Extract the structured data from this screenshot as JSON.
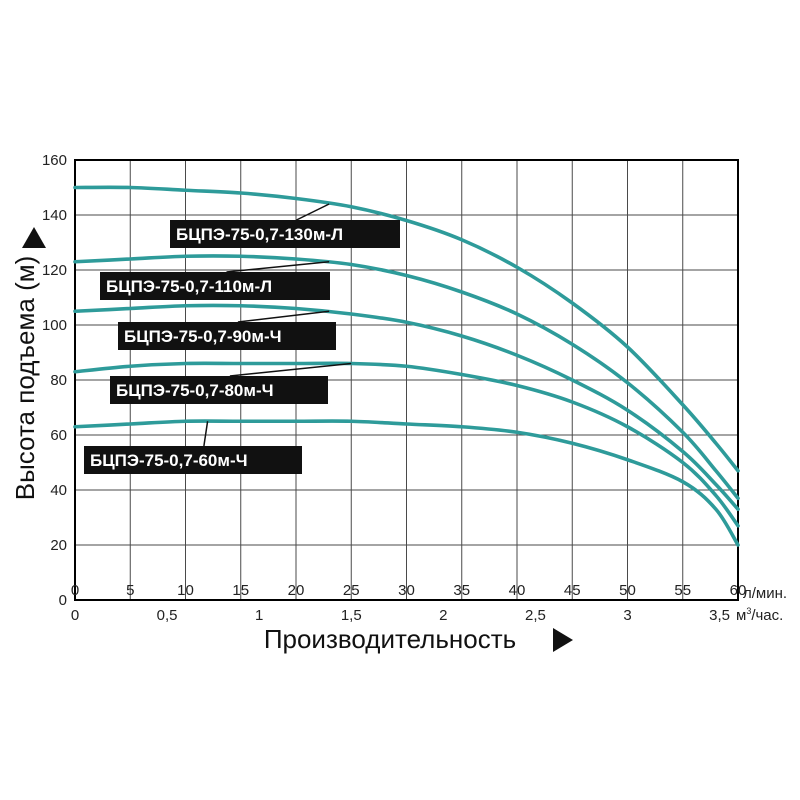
{
  "chart_data": {
    "type": "line",
    "ylabel": "Высота подъема (м)",
    "xlabel": "Производительность",
    "x_unit_top": "л/мин.",
    "x_unit_bottom_main": "м",
    "x_unit_bottom_sup": "3",
    "x_unit_bottom_tail": "/час.",
    "ylim": [
      0,
      160
    ],
    "xlim": [
      0,
      60
    ],
    "y_ticks": [
      "0",
      "20",
      "40",
      "60",
      "80",
      "100",
      "120",
      "140",
      "160"
    ],
    "y_tick_values": [
      0,
      20,
      40,
      60,
      80,
      100,
      120,
      140,
      160
    ],
    "x_ticks_top": [
      "0",
      "5",
      "10",
      "15",
      "20",
      "25",
      "30",
      "35",
      "40",
      "45",
      "50",
      "55",
      "60"
    ],
    "x_tick_values_top": [
      0,
      5,
      10,
      15,
      20,
      25,
      30,
      35,
      40,
      45,
      50,
      55,
      60
    ],
    "x_ticks_bottom": [
      "0",
      "0,5",
      "1",
      "1,5",
      "2",
      "2,5",
      "3",
      "3,5"
    ],
    "x_tick_values_bottom": [
      0,
      0.5,
      1,
      1.5,
      2,
      2.5,
      3,
      3.5
    ],
    "grid": true,
    "curve_color": "#2e9b9a",
    "series": [
      {
        "name": "БЦПЭ-75-0,7-130м-Л",
        "x": [
          0,
          5,
          10,
          15,
          20,
          25,
          30,
          35,
          40,
          45,
          50,
          55,
          58,
          60
        ],
        "y": [
          150,
          150,
          149,
          148,
          146,
          143,
          138,
          131,
          121,
          108,
          92,
          71,
          57,
          47
        ]
      },
      {
        "name": "БЦПЭ-75-0,7-110м-Л",
        "x": [
          0,
          5,
          10,
          15,
          20,
          25,
          30,
          35,
          40,
          45,
          50,
          55,
          58,
          60
        ],
        "y": [
          123,
          124,
          125,
          125,
          124,
          122,
          118,
          112,
          104,
          93,
          79,
          61,
          47,
          37
        ]
      },
      {
        "name": "БЦПЭ-75-0,7-90м-Ч",
        "x": [
          0,
          5,
          10,
          15,
          20,
          25,
          30,
          35,
          40,
          45,
          50,
          55,
          58,
          60
        ],
        "y": [
          105,
          106,
          107,
          107,
          106,
          104,
          101,
          96,
          89,
          80,
          69,
          54,
          42,
          33
        ]
      },
      {
        "name": "БЦПЭ-75-0,7-80м-Ч",
        "x": [
          0,
          5,
          10,
          15,
          20,
          25,
          30,
          35,
          40,
          45,
          50,
          55,
          58,
          60
        ],
        "y": [
          83,
          85,
          86,
          86,
          86,
          86,
          85,
          82,
          78,
          72,
          63,
          50,
          38,
          27
        ]
      },
      {
        "name": "БЦПЭ-75-0,7-60м-Ч",
        "x": [
          0,
          5,
          10,
          15,
          20,
          25,
          30,
          35,
          40,
          45,
          50,
          55,
          58,
          60
        ],
        "y": [
          63,
          64,
          65,
          65,
          65,
          65,
          64,
          63,
          61,
          57,
          51,
          43,
          33,
          20
        ]
      }
    ],
    "labels": [
      {
        "text": "БЦПЭ-75-0,7-130м-Л",
        "series_index": 0,
        "point_x": 23,
        "anchor_x": 23,
        "anchor_y": 144
      },
      {
        "text": "БЦПЭ-75-0,7-110м-Л",
        "series_index": 1,
        "point_x": 23,
        "anchor_x": 23,
        "anchor_y": 123
      },
      {
        "text": "БЦПЭ-75-0,7-90м-Ч",
        "series_index": 2,
        "point_x": 23,
        "anchor_x": 23,
        "anchor_y": 105
      },
      {
        "text": "БЦПЭ-75-0,7-80м-Ч",
        "series_index": 3,
        "point_x": 25,
        "anchor_x": 25,
        "anchor_y": 86
      },
      {
        "text": "БЦПЭ-75-0,7-60м-Ч",
        "series_index": 4,
        "point_x": 12,
        "anchor_x": 12,
        "anchor_y": 65
      }
    ]
  }
}
